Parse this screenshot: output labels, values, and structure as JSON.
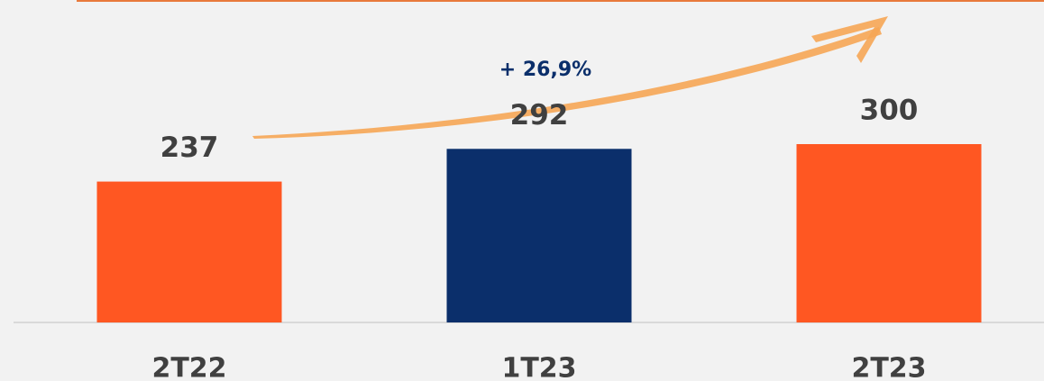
{
  "chart_data": {
    "type": "bar",
    "categories": [
      "2T22",
      "1T23",
      "2T23"
    ],
    "values": [
      237,
      292,
      300
    ],
    "colors": [
      "#ff5722",
      "#0b2f6b",
      "#ff5722"
    ],
    "annotation": "+ 26,9%"
  }
}
